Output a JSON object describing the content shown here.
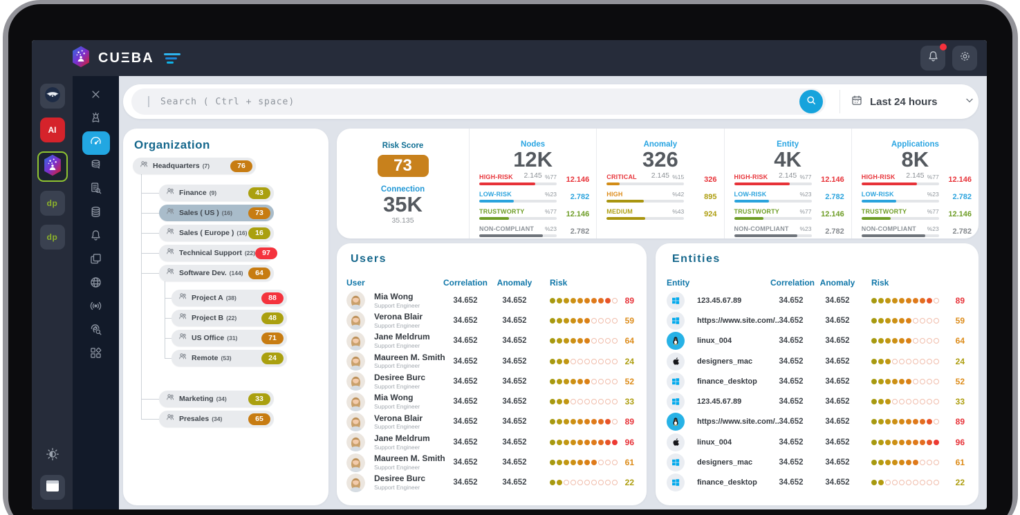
{
  "topbar": {
    "brand": "CUΞBA",
    "notification_badge": true
  },
  "dock": {
    "items": [
      {
        "icon": "swarm-app-icon",
        "label": ""
      },
      {
        "icon": "eagle-app-icon",
        "label": ""
      },
      {
        "icon": "ai-app-icon",
        "label": "AI"
      },
      {
        "icon": "cueba-app-icon",
        "label": "",
        "selected": true
      },
      {
        "icon": "dp-app-icon",
        "label": "dp"
      },
      {
        "icon": "dp-store-app-icon",
        "label": "dp"
      }
    ],
    "bottom_items": [
      {
        "icon": "theme-toggle-icon"
      },
      {
        "icon": "window-icon"
      }
    ]
  },
  "sidebar": {
    "items": [
      {
        "icon": "close-icon",
        "active": false
      },
      {
        "icon": "persona-icon",
        "active": false
      },
      {
        "icon": "dashboard-gauge-icon",
        "active": true
      },
      {
        "icon": "database-chat-icon",
        "active": false
      },
      {
        "icon": "report-search-icon",
        "active": false
      },
      {
        "icon": "database-icon",
        "active": false
      },
      {
        "icon": "bell-icon",
        "active": false
      },
      {
        "icon": "layers-icon",
        "active": false
      },
      {
        "icon": "globe-icon",
        "active": false
      },
      {
        "icon": "broadcast-icon",
        "active": false
      },
      {
        "icon": "identity-search-icon",
        "active": false
      },
      {
        "icon": "apps-grid-icon",
        "active": false
      }
    ]
  },
  "search": {
    "placeholder": "Search ( Ctrl + space)",
    "time_range": "Last 24 hours"
  },
  "organization": {
    "title": "Organization",
    "items": [
      {
        "label": "Headquarters",
        "count": "(7)",
        "score": 76,
        "level": 0,
        "severity": "orange",
        "selected": false
      },
      {
        "label": "Finance",
        "count": "(9)",
        "score": 43,
        "level": 1,
        "severity": "olive",
        "selected": false
      },
      {
        "label": "Sales ( US )",
        "count": "(16)",
        "score": 73,
        "level": 1,
        "severity": "orange",
        "selected": true
      },
      {
        "label": "Sales ( Europe )",
        "count": "(16)",
        "score": 16,
        "level": 1,
        "severity": "olive",
        "selected": false
      },
      {
        "label": "Technical Support",
        "count": "(22)",
        "score": 97,
        "level": 1,
        "severity": "red",
        "selected": false
      },
      {
        "label": "Software Dev.",
        "count": "(144)",
        "score": 64,
        "level": 1,
        "severity": "orange",
        "selected": false
      },
      {
        "label": "Project A",
        "count": "(38)",
        "score": 88,
        "level": 2,
        "severity": "red",
        "selected": false
      },
      {
        "label": "Project B",
        "count": "(22)",
        "score": 48,
        "level": 2,
        "severity": "olive",
        "selected": false
      },
      {
        "label": "US Office",
        "count": "(31)",
        "score": 71,
        "level": 2,
        "severity": "orange",
        "selected": false
      },
      {
        "label": "Remote",
        "count": "(53)",
        "score": 24,
        "level": 2,
        "severity": "olive",
        "selected": false
      },
      {
        "label": "Marketing",
        "count": "(34)",
        "score": 33,
        "level": 1,
        "severity": "olive",
        "selected": false
      },
      {
        "label": "Presales",
        "count": "(34)",
        "score": 65,
        "level": 1,
        "severity": "orange",
        "selected": false
      }
    ]
  },
  "stats": {
    "risk_score": {
      "label": "Risk Score",
      "value": "73"
    },
    "connection": {
      "label": "Connection",
      "value": "35K",
      "sub": "35.135"
    },
    "cards": [
      {
        "label": "Nodes",
        "value": "12K",
        "sub": "2.145",
        "rows": [
          {
            "name": "HIGH-RISK",
            "pct": "%77",
            "value": "12.146",
            "color": "red",
            "bar_color": "red",
            "value_color": "red",
            "bar": 72
          },
          {
            "name": "LOW-RISK",
            "pct": "%23",
            "value": "2.782",
            "color": "blue",
            "bar_color": "blue",
            "value_color": "blue",
            "bar": 45
          },
          {
            "name": "TRUSTWORTY",
            "pct": "%77",
            "value": "12.146",
            "color": "green",
            "bar_color": "green",
            "value_color": "green",
            "bar": 38
          },
          {
            "name": "NON-COMPLIANT",
            "pct": "%23",
            "value": "2.782",
            "color": "graylabel",
            "bar_color": "gray",
            "value_color": "gray",
            "bar": 82
          }
        ]
      },
      {
        "label": "Anomaly",
        "value": "326",
        "sub": "2.145",
        "rows": [
          {
            "name": "CRITICAL",
            "pct": "%15",
            "value": "326",
            "color": "red",
            "bar_color": "orange",
            "value_color": "red",
            "bar": 17
          },
          {
            "name": "HIGH",
            "pct": "%42",
            "value": "895",
            "color": "orange",
            "bar_color": "olive",
            "value_color": "olive",
            "bar": 48
          },
          {
            "name": "MEDIUM",
            "pct": "%43",
            "value": "924",
            "color": "olive",
            "bar_color": "olive",
            "value_color": "olive",
            "bar": 50
          }
        ]
      },
      {
        "label": "Entity",
        "value": "4K",
        "sub": "2.145",
        "rows": [
          {
            "name": "HIGH-RISK",
            "pct": "%77",
            "value": "12.146",
            "color": "red",
            "bar_color": "red",
            "value_color": "red",
            "bar": 72
          },
          {
            "name": "LOW-RISK",
            "pct": "%23",
            "value": "2.782",
            "color": "blue",
            "bar_color": "blue",
            "value_color": "blue",
            "bar": 45
          },
          {
            "name": "TRUSTWORTY",
            "pct": "%77",
            "value": "12.146",
            "color": "green",
            "bar_color": "green",
            "value_color": "green",
            "bar": 38
          },
          {
            "name": "NON-COMPLIANT",
            "pct": "%23",
            "value": "2.782",
            "color": "graylabel",
            "bar_color": "gray",
            "value_color": "gray",
            "bar": 82
          }
        ]
      },
      {
        "label": "Applications",
        "value": "8K",
        "sub": "2.145",
        "rows": [
          {
            "name": "HIGH-RISK",
            "pct": "%77",
            "value": "12.146",
            "color": "red",
            "bar_color": "red",
            "value_color": "red",
            "bar": 72
          },
          {
            "name": "LOW-RISK",
            "pct": "%23",
            "value": "2.782",
            "color": "blue",
            "bar_color": "blue",
            "value_color": "blue",
            "bar": 45
          },
          {
            "name": "TRUSTWORTY",
            "pct": "%77",
            "value": "12.146",
            "color": "green",
            "bar_color": "green",
            "value_color": "green",
            "bar": 38
          },
          {
            "name": "NON-COMPLIANT",
            "pct": "%23",
            "value": "2.782",
            "color": "graylabel",
            "bar_color": "gray",
            "value_color": "gray",
            "bar": 82
          }
        ]
      }
    ]
  },
  "users": {
    "title": "Users",
    "headers": [
      "User",
      "Correlation",
      "Anomaly",
      "Risk"
    ],
    "rows": [
      {
        "name": "Mia Wong",
        "role": "Support Engineer",
        "correlation": "34.652",
        "anomaly": "34.652",
        "risk": 89,
        "dots": 9
      },
      {
        "name": "Verona Blair",
        "role": "Support Engineer",
        "correlation": "34.652",
        "anomaly": "34.652",
        "risk": 59,
        "dots": 6
      },
      {
        "name": "Jane Meldrum",
        "role": "Support Engineer",
        "correlation": "34.652",
        "anomaly": "34.652",
        "risk": 64,
        "dots": 6
      },
      {
        "name": "Maureen M. Smith",
        "role": "Support Engineer",
        "correlation": "34.652",
        "anomaly": "34.652",
        "risk": 24,
        "dots": 3
      },
      {
        "name": "Desiree Burc",
        "role": "Support Engineer",
        "correlation": "34.652",
        "anomaly": "34.652",
        "risk": 52,
        "dots": 6
      },
      {
        "name": "Mia Wong",
        "role": "Support Engineer",
        "correlation": "34.652",
        "anomaly": "34.652",
        "risk": 33,
        "dots": 3
      },
      {
        "name": "Verona Blair",
        "role": "Support Engineer",
        "correlation": "34.652",
        "anomaly": "34.652",
        "risk": 89,
        "dots": 9
      },
      {
        "name": "Jane Meldrum",
        "role": "Support Engineer",
        "correlation": "34.652",
        "anomaly": "34.652",
        "risk": 96,
        "dots": 10
      },
      {
        "name": "Maureen M. Smith",
        "role": "Support Engineer",
        "correlation": "34.652",
        "anomaly": "34.652",
        "risk": 61,
        "dots": 7
      },
      {
        "name": "Desiree Burc",
        "role": "Support Engineer",
        "correlation": "34.652",
        "anomaly": "34.652",
        "risk": 22,
        "dots": 2
      }
    ]
  },
  "entities": {
    "title": "Entities",
    "headers": [
      "Entity",
      "Correlation",
      "Anomaly",
      "Risk"
    ],
    "rows": [
      {
        "name": "123.45.67.89",
        "os": "windows",
        "correlation": "34.652",
        "anomaly": "34.652",
        "risk": 89,
        "dots": 9
      },
      {
        "name": "https://www.site.com/..",
        "os": "windows",
        "correlation": "34.652",
        "anomaly": "34.652",
        "risk": 59,
        "dots": 6
      },
      {
        "name": "linux_004",
        "os": "linux",
        "correlation": "34.652",
        "anomaly": "34.652",
        "risk": 64,
        "dots": 6
      },
      {
        "name": "designers_mac",
        "os": "apple",
        "correlation": "34.652",
        "anomaly": "34.652",
        "risk": 24,
        "dots": 3
      },
      {
        "name": "finance_desktop",
        "os": "windows",
        "correlation": "34.652",
        "anomaly": "34.652",
        "risk": 52,
        "dots": 6
      },
      {
        "name": "123.45.67.89",
        "os": "windows",
        "correlation": "34.652",
        "anomaly": "34.652",
        "risk": 33,
        "dots": 3
      },
      {
        "name": "https://www.site.com/..",
        "os": "linux",
        "correlation": "34.652",
        "anomaly": "34.652",
        "risk": 89,
        "dots": 9
      },
      {
        "name": "linux_004",
        "os": "apple",
        "correlation": "34.652",
        "anomaly": "34.652",
        "risk": 96,
        "dots": 10
      },
      {
        "name": "designers_mac",
        "os": "windows",
        "correlation": "34.652",
        "anomaly": "34.652",
        "risk": 61,
        "dots": 7
      },
      {
        "name": "finance_desktop",
        "os": "windows",
        "correlation": "34.652",
        "anomaly": "34.652",
        "risk": 22,
        "dots": 2
      }
    ]
  },
  "colors": {
    "accent_blue": "#16a3dc",
    "severity_red": "#e73238",
    "severity_orange": "#dd8c1a",
    "severity_olive": "#ae9e10",
    "badge_red": "#f4333d",
    "badge_orange": "#c77c12",
    "badge_olive": "#aaa00f",
    "risk_box_orange": "#c8811c",
    "dot_palette": [
      "#a69910",
      "#b49b10",
      "#c29712",
      "#cc9014",
      "#d58815",
      "#db8117",
      "#df7a1b",
      "#e36d20",
      "#e85429",
      "#ed3a33"
    ]
  }
}
